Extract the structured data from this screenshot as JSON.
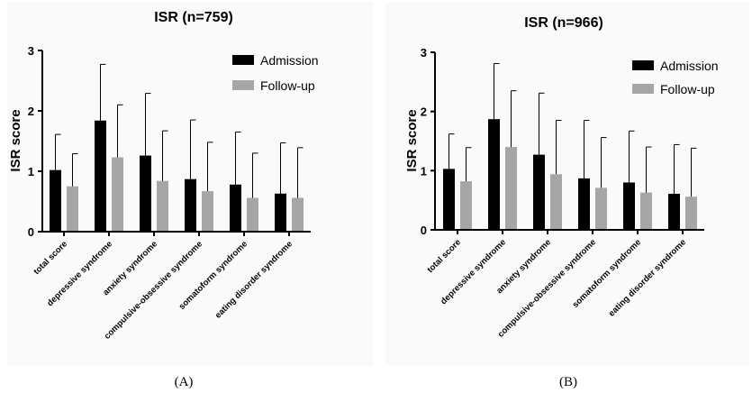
{
  "colors": {
    "admission": "#000000",
    "follow_up": "#a6a6a6"
  },
  "chart_data": [
    {
      "type": "bar",
      "panel_label": "(A)",
      "title": "ISR (n=759)",
      "xlabel": "",
      "ylabel": "ISR score",
      "ylim": [
        0,
        3
      ],
      "yticks": [
        "0",
        "1",
        "2",
        "3"
      ],
      "legend_position": "top-right",
      "categories": [
        "total score",
        "depressive syndrome",
        "anxiety syndrome",
        "compulsive-obsessive syndrome",
        "somatoform syndrome",
        "eating disorder syndrome"
      ],
      "series": [
        {
          "name": "Admission",
          "values": [
            1.02,
            1.84,
            1.26,
            0.87,
            0.78,
            0.63
          ],
          "error_top": [
            1.61,
            2.77,
            2.29,
            1.85,
            1.65,
            1.47
          ]
        },
        {
          "name": "Follow-up",
          "values": [
            0.75,
            1.23,
            0.84,
            0.67,
            0.56,
            0.56
          ],
          "error_top": [
            1.29,
            2.1,
            1.67,
            1.48,
            1.3,
            1.39
          ]
        }
      ]
    },
    {
      "type": "bar",
      "panel_label": "(B)",
      "title": "ISR (n=966)",
      "xlabel": "",
      "ylabel": "ISR score",
      "ylim": [
        0,
        3
      ],
      "yticks": [
        "0",
        "1",
        "2",
        "3"
      ],
      "legend_position": "top-right",
      "categories": [
        "total score",
        "depressive syndrome",
        "anxiety syndrome",
        "compulsive-obsessive syndrome",
        "somatoform syndrome",
        "eating disorder syndrome"
      ],
      "series": [
        {
          "name": "Admission",
          "values": [
            1.03,
            1.87,
            1.27,
            0.87,
            0.8,
            0.61
          ],
          "error_top": [
            1.62,
            2.81,
            2.31,
            1.85,
            1.67,
            1.44
          ]
        },
        {
          "name": "Follow-up",
          "values": [
            0.82,
            1.4,
            0.94,
            0.71,
            0.63,
            0.56
          ],
          "error_top": [
            1.39,
            2.35,
            1.85,
            1.56,
            1.4,
            1.38
          ]
        }
      ]
    }
  ]
}
